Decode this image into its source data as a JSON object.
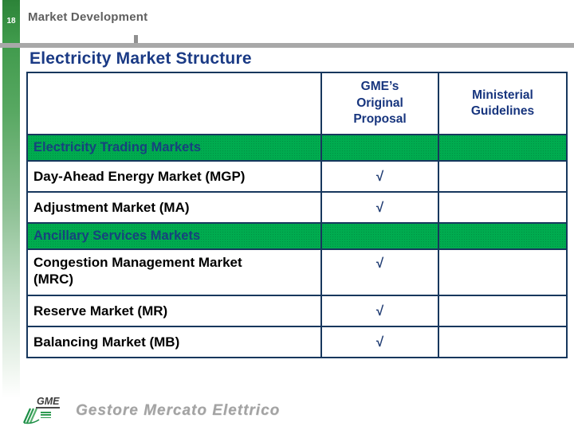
{
  "slide": {
    "page_number": "18",
    "header_title": "Market Development",
    "title": "Electricity Market Structure"
  },
  "table": {
    "header": {
      "market": "",
      "gme": "GME’s\nOriginal\nProposal",
      "ministerial": "Ministerial\nGuidelines"
    },
    "rows": [
      {
        "type": "section",
        "label": "Electricity Trading Markets",
        "gme": "",
        "ministerial": ""
      },
      {
        "type": "item",
        "label": "Day-Ahead Energy Market (MGP)",
        "gme": "√",
        "ministerial": ""
      },
      {
        "type": "item",
        "label": "Adjustment Market (MA)",
        "gme": "√",
        "ministerial": ""
      },
      {
        "type": "section",
        "label": "Ancillary Services Markets",
        "gme": "",
        "ministerial": ""
      },
      {
        "type": "item",
        "label": "Congestion Management Market\n(MRC)",
        "gme": "√",
        "ministerial": ""
      },
      {
        "type": "item",
        "label": "Reserve Market (MR)",
        "gme": "√",
        "ministerial": ""
      },
      {
        "type": "item",
        "label": "Balancing Market (MB)",
        "gme": "√",
        "ministerial": ""
      }
    ],
    "check_symbol": "√"
  },
  "footer": {
    "logo_text": "GME",
    "tagline": "Gestore Mercato Elettrico"
  },
  "colors": {
    "accent_green": "#00ab4f",
    "accent_green_dot": "#015d2b",
    "navy_border": "#17375d",
    "navy_text": "#17357e",
    "title_blue": "#1a3a85",
    "header_gray": "#5f5f5f",
    "bar_gray": "#a8a8a8",
    "logo_green": "#2f9b52"
  }
}
